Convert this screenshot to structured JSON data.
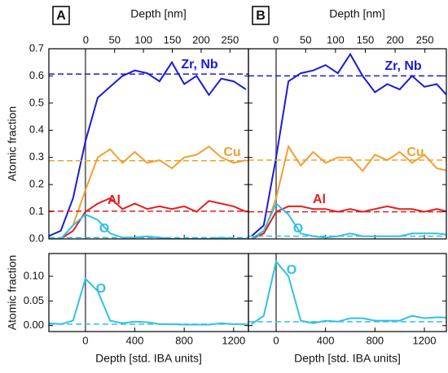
{
  "chart_data": [
    {
      "type": "line",
      "panel": "A",
      "ylabel": "Atomic fraction",
      "x2label": "Depth [nm]",
      "x2lim": [
        -64,
        282
      ],
      "x2ticks": [
        0,
        50,
        100,
        150,
        200,
        250
      ],
      "xlim": [
        -296,
        1320
      ],
      "ylim": [
        0,
        0.7
      ],
      "yticks": [
        {
          "value": 0,
          "label": "0.0"
        },
        0.1,
        0.2,
        0.3,
        0.4,
        0.5,
        0.6,
        0.7
      ],
      "x": [
        -300,
        -200,
        -100,
        0,
        100,
        200,
        300,
        400,
        500,
        600,
        700,
        800,
        900,
        1000,
        1100,
        1200,
        1300
      ],
      "series": [
        {
          "name": "Zr, Nb",
          "color": "#1c1cd8",
          "ref": 0.607,
          "values": [
            0.01,
            0.03,
            0.15,
            0.36,
            0.52,
            0.56,
            0.6,
            0.62,
            0.61,
            0.58,
            0.65,
            0.57,
            0.6,
            0.53,
            0.59,
            0.58,
            0.55
          ]
        },
        {
          "name": "Cu",
          "color": "#f0a030",
          "ref": 0.288,
          "values": [
            0,
            0,
            0.05,
            0.18,
            0.3,
            0.33,
            0.28,
            0.32,
            0.28,
            0.29,
            0.26,
            0.3,
            0.31,
            0.34,
            0.3,
            0.28,
            0.29
          ]
        },
        {
          "name": "Al",
          "color": "#e02020",
          "ref": 0.102,
          "values": [
            0,
            0,
            0.03,
            0.1,
            0.13,
            0.15,
            0.11,
            0.13,
            0.11,
            0.12,
            0.11,
            0.12,
            0.1,
            0.14,
            0.13,
            0.12,
            0.1
          ]
        },
        {
          "name": "O",
          "color": "#30c0e8",
          "ref": 0.005,
          "values": [
            0,
            0,
            0.05,
            0.09,
            0.07,
            0.02,
            0.005,
            0.005,
            0.01,
            0.005,
            0,
            0,
            0,
            0,
            0.005,
            0,
            0
          ]
        }
      ]
    },
    {
      "type": "line",
      "panel": "B",
      "x2label": "Depth [nm]",
      "x2lim": [
        -46,
        286
      ],
      "x2ticks": [
        0,
        50,
        100,
        150,
        200,
        250
      ],
      "xlim": [
        -224,
        1378
      ],
      "ylim": [
        0,
        0.7
      ],
      "x": [
        -200,
        -100,
        0,
        100,
        200,
        300,
        400,
        500,
        600,
        700,
        800,
        900,
        1000,
        1100,
        1200,
        1300,
        1400
      ],
      "series": [
        {
          "name": "Zr, Nb",
          "color": "#1c1cd8",
          "ref": 0.6,
          "values": [
            0.01,
            0.05,
            0.3,
            0.58,
            0.61,
            0.62,
            0.64,
            0.61,
            0.68,
            0.6,
            0.54,
            0.57,
            0.55,
            0.6,
            0.56,
            0.57,
            0.52
          ]
        },
        {
          "name": "Cu",
          "color": "#f0a030",
          "ref": 0.29,
          "values": [
            0,
            0.02,
            0.15,
            0.34,
            0.27,
            0.32,
            0.28,
            0.3,
            0.3,
            0.25,
            0.31,
            0.29,
            0.32,
            0.28,
            0.31,
            0.26,
            0.25
          ]
        },
        {
          "name": "Al",
          "color": "#e02020",
          "ref": 0.1,
          "values": [
            0,
            0.02,
            0.1,
            0.12,
            0.12,
            0.11,
            0.11,
            0.1,
            0.11,
            0.1,
            0.11,
            0.12,
            0.11,
            0.11,
            0.1,
            0.11,
            0.1
          ]
        },
        {
          "name": "O",
          "color": "#30c0e8",
          "ref": 0.01,
          "values": [
            0,
            0.03,
            0.13,
            0.09,
            0.02,
            0.01,
            0.005,
            0.01,
            0.02,
            0.01,
            0.01,
            0.01,
            0.01,
            0.02,
            0.02,
            0.02,
            0.015
          ]
        }
      ]
    },
    {
      "type": "line",
      "ylabel": "Atomic fraction",
      "xlabel": "Depth [std. IBA units]",
      "xlim": [
        -296,
        1320
      ],
      "xticks": [
        0,
        400,
        800,
        1200
      ],
      "ylim": [
        -0.012,
        0.146
      ],
      "yticks": [
        {
          "value": 0,
          "label": "0.00"
        },
        {
          "value": 0.05,
          "label": "0.05"
        },
        {
          "value": 0.1,
          "label": "0.10"
        }
      ],
      "x": [
        -300,
        -200,
        -100,
        0,
        100,
        200,
        300,
        400,
        500,
        600,
        700,
        800,
        900,
        1000,
        1100,
        1200,
        1300
      ],
      "series": [
        {
          "name": "O",
          "color": "#30c0e8",
          "ref": 0.003,
          "values": [
            0.005,
            0.003,
            0.01,
            0.095,
            0.07,
            0.01,
            0.005,
            0.008,
            0.007,
            0.003,
            0.003,
            0.002,
            0.002,
            0.002,
            0.005,
            0.003,
            0.003
          ]
        }
      ]
    },
    {
      "type": "line",
      "xlabel": "Depth [std. IBA units]",
      "xlim": [
        -224,
        1378
      ],
      "xticks": [
        0,
        400,
        800,
        1200
      ],
      "ylim": [
        -0.012,
        0.146
      ],
      "x": [
        -200,
        -100,
        0,
        100,
        200,
        300,
        400,
        500,
        600,
        700,
        800,
        900,
        1000,
        1100,
        1200,
        1300,
        1400
      ],
      "series": [
        {
          "name": "O",
          "color": "#30c0e8",
          "ref": 0.008,
          "values": [
            0.003,
            0.02,
            0.13,
            0.1,
            0.01,
            0.005,
            0.01,
            0.008,
            0.015,
            0.015,
            0.01,
            0.01,
            0.01,
            0.02,
            0.015,
            0.017,
            0.016
          ]
        }
      ]
    }
  ]
}
